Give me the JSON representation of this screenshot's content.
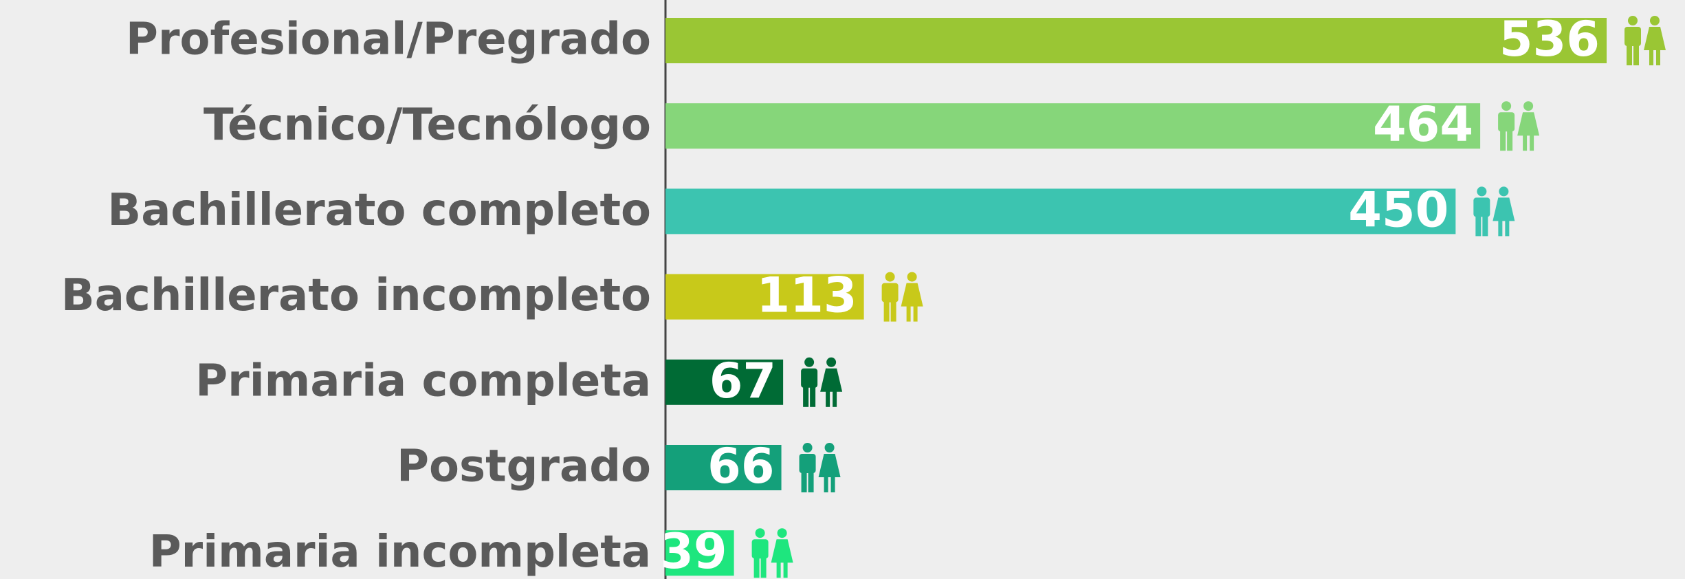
{
  "chart_data": {
    "type": "bar",
    "orientation": "horizontal",
    "categories": [
      "Profesional/Pregrado",
      "Técnico/Tecnólogo",
      "Bachillerato completo",
      "Bachillerato incompleto",
      "Primaria completa",
      "Postgrado",
      "Primaria incompleta"
    ],
    "values": [
      536,
      464,
      450,
      113,
      67,
      66,
      39
    ],
    "colors": [
      "#9ac634",
      "#86d67a",
      "#3cc4b0",
      "#c8c91a",
      "#006b35",
      "#14a07a",
      "#1ee67e"
    ]
  }
}
